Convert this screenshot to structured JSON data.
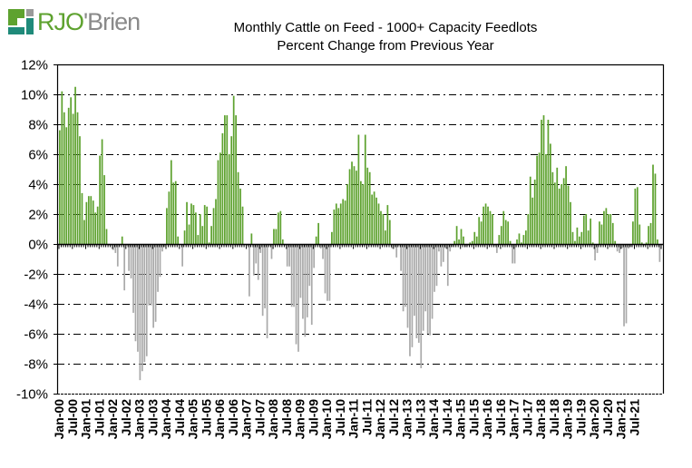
{
  "logo": {
    "part1": "RJO",
    "apostrophe": "'",
    "part2": "Brien",
    "colors": {
      "green": "#5ea22f",
      "teal": "#1f8a7a",
      "gray": "#8a8a8a"
    }
  },
  "chart_data": {
    "type": "bar",
    "title": "Monthly Cattle on Feed - 1000+ Capacity Feedlots",
    "subtitle": "Percent Change from Previous Year",
    "xlabel": "",
    "ylabel": "",
    "ylim": [
      -10,
      12
    ],
    "yticks": [
      -10,
      -8,
      -6,
      -4,
      -2,
      0,
      2,
      4,
      6,
      8,
      10,
      12
    ],
    "ytick_labels": [
      "-10%",
      "-8%",
      "-6%",
      "-4%",
      "-2%",
      "0%",
      "2%",
      "4%",
      "6%",
      "8%",
      "10%",
      "12%"
    ],
    "grid": "horizontal dash-dot",
    "positive_color": "#5ea22f",
    "negative_color": "#aaaaaa",
    "start": "Jan-00",
    "frequency": "monthly",
    "xtick_labels": [
      "Jan-00",
      "Jul-00",
      "Jan-01",
      "Jul-01",
      "Jan-02",
      "Jul-02",
      "Jan-03",
      "Jul-03",
      "Jan-04",
      "Jul-04",
      "Jan-05",
      "Jul-05",
      "Jan-06",
      "Jul-06",
      "Jan-07",
      "Jul-07",
      "Jan-08",
      "Jul-08",
      "Jan-09",
      "Jul-09",
      "Jan-10",
      "Jul-10",
      "Jan-11",
      "Jul-11",
      "Jan-12",
      "Jul-12",
      "Jan-13",
      "Jul-13",
      "Jan-14",
      "Jul-14",
      "Jan-15",
      "Jul-15",
      "Jan-16",
      "Jul-16",
      "Jan-17",
      "Jul-17",
      "Jan-18",
      "Jul-18",
      "Jan-19",
      "Jul-19",
      "Jan-20",
      "Jul-20",
      "Jan-21",
      "Jul-21"
    ],
    "values": [
      7.6,
      10.2,
      8.8,
      7.8,
      9.1,
      9.8,
      8.7,
      10.5,
      8.8,
      7.2,
      3.4,
      1.6,
      2.8,
      3.2,
      3.2,
      2.9,
      2.1,
      2.5,
      5.9,
      7.0,
      4.6,
      1.0,
      -0.1,
      -0.1,
      -0.4,
      -0.6,
      -1.5,
      -0.1,
      0.5,
      -3.1,
      -0.1,
      -1.8,
      -2.3,
      -4.6,
      -6.5,
      -7.2,
      -9.1,
      -8.5,
      -7.9,
      -7.5,
      -4.1,
      -4.1,
      -5.6,
      -5.2,
      -3.2,
      -2.2,
      -0.5,
      -0.2,
      2.4,
      3.5,
      5.6,
      4.1,
      4.2,
      0.5,
      0.0,
      -1.5,
      0.9,
      2.8,
      1.3,
      2.7,
      2.6,
      2.1,
      0.6,
      2.0,
      1.2,
      2.6,
      2.5,
      0.1,
      1.2,
      2.4,
      3.0,
      5.6,
      6.1,
      7.4,
      8.6,
      8.6,
      6.0,
      7.2,
      9.9,
      8.6,
      4.8,
      3.7,
      2.5,
      0.0,
      -0.1,
      -3.5,
      0.7,
      -2.1,
      -1.3,
      -2.4,
      -0.6,
      -4.8,
      -4.3,
      -6.3,
      -0.1,
      -1.0,
      1.0,
      1.0,
      2.1,
      2.2,
      0.3,
      -0.1,
      -1.5,
      -1.5,
      -4.2,
      -4.2,
      -6.7,
      -7.2,
      -3.6,
      -5.0,
      -6.2,
      -4.9,
      -2.8,
      -5.4,
      -1.6,
      0.5,
      1.4,
      -0.3,
      -1.0,
      -3.3,
      -3.8,
      -3.8,
      0.8,
      2.3,
      2.7,
      2.4,
      2.7,
      3.0,
      2.9,
      4.0,
      5.0,
      5.5,
      5.2,
      4.9,
      7.3,
      4.2,
      4.0,
      7.3,
      5.1,
      4.8,
      3.3,
      3.5,
      3.1,
      2.7,
      2.2,
      2.0,
      0.9,
      2.6,
      1.6,
      -0.3,
      -0.2,
      -0.9,
      -0.1,
      -1.8,
      -4.5,
      -4.2,
      -5.6,
      -7.5,
      -6.9,
      -4.8,
      -6.3,
      -6.6,
      -8.3,
      -5.8,
      -4.5,
      -6.0,
      -6.1,
      -5.0,
      -3.2,
      -2.8,
      -0.5,
      -1.5,
      -1.2,
      -0.3,
      -2.8,
      -0.5,
      -0.2,
      0.2,
      1.2,
      0.3,
      1.0,
      0.5,
      -0.2,
      -0.1,
      0.1,
      0.2,
      0.8,
      0.5,
      1.8,
      1.5,
      2.5,
      2.7,
      2.5,
      2.2,
      2.0,
      -0.1,
      -0.6,
      0.6,
      1.2,
      2.2,
      1.6,
      1.5,
      0.2,
      -1.3,
      -1.3,
      0.3,
      0.7,
      0.1,
      0.6,
      0.9,
      2.0,
      4.5,
      3.1,
      4.3,
      5.9,
      6.1,
      8.3,
      8.6,
      6.0,
      8.3,
      6.7,
      4.8,
      4.1,
      5.1,
      3.7,
      4.0,
      4.4,
      5.2,
      3.9,
      2.8,
      0.8,
      0.2,
      1.1,
      0.5,
      0.8,
      1.9,
      2.0,
      0.9,
      1.7,
      0.1,
      -1.1,
      -0.6,
      1.5,
      1.3,
      2.2,
      2.4,
      2.0,
      2.0,
      1.4,
      0.2,
      -0.5,
      -0.6,
      -0.3,
      -5.5,
      -5.3,
      -0.3,
      -0.2,
      1.5,
      3.7,
      3.8,
      1.3,
      0.1,
      -0.1,
      0.1,
      1.2,
      1.4,
      5.3,
      4.7,
      0.3,
      -1.2
    ]
  }
}
